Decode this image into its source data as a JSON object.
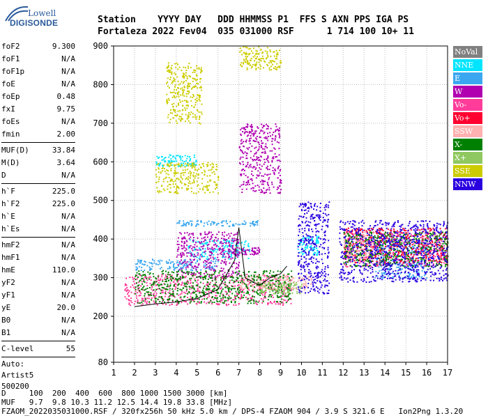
{
  "logo": {
    "brand_top": "Lowell",
    "brand_bottom": "DIGISONDE"
  },
  "header": {
    "line1": "Station    YYYY DAY   DDD HHMMSS P1  FFS S AXN PPS IGA PS",
    "line2": "Fortaleza 2022 Fev04  035 031000 RSF      1 714 100 10+ 11"
  },
  "params_group1": [
    {
      "k": "foF2",
      "v": "9.300"
    },
    {
      "k": "foF1",
      "v": "N/A"
    },
    {
      "k": "foF1p",
      "v": "N/A"
    },
    {
      "k": "foE",
      "v": "N/A"
    },
    {
      "k": "foEp",
      "v": "0.48"
    },
    {
      "k": "fxI",
      "v": "9.75"
    },
    {
      "k": "foEs",
      "v": "N/A"
    },
    {
      "k": "fmin",
      "v": "2.00"
    }
  ],
  "params_group2": [
    {
      "k": "MUF(D)",
      "v": "33.84"
    },
    {
      "k": "M(D)",
      "v": "3.64"
    },
    {
      "k": "D",
      "v": "N/A"
    }
  ],
  "params_group3": [
    {
      "k": "h`F",
      "v": "225.0"
    },
    {
      "k": "h`F2",
      "v": "225.0"
    },
    {
      "k": "h`E",
      "v": "N/A"
    },
    {
      "k": "h`Es",
      "v": "N/A"
    }
  ],
  "params_group4": [
    {
      "k": "hmF2",
      "v": "N/A"
    },
    {
      "k": "hmF1",
      "v": "N/A"
    },
    {
      "k": "hmE",
      "v": "110.0"
    },
    {
      "k": "yF2",
      "v": "N/A"
    },
    {
      "k": "yF1",
      "v": "N/A"
    },
    {
      "k": "yE",
      "v": "20.0"
    },
    {
      "k": "B0",
      "v": "N/A"
    },
    {
      "k": "B1",
      "v": "N/A"
    }
  ],
  "params_group5": [
    {
      "k": "C-level",
      "v": "55"
    }
  ],
  "auto": {
    "line1": "Auto:",
    "line2": "Artist5",
    "line3": "500200"
  },
  "legend": [
    {
      "label": "NoVal",
      "color": "#808080"
    },
    {
      "label": "NNE",
      "color": "#00e5ff"
    },
    {
      "label": "E",
      "color": "#3ba7f0"
    },
    {
      "label": "W",
      "color": "#b000b0"
    },
    {
      "label": "Vo-",
      "color": "#ff3c9a"
    },
    {
      "label": "Vo+",
      "color": "#ff0030"
    },
    {
      "label": "SSW",
      "color": "#ffb0b0"
    },
    {
      "label": "X-",
      "color": "#008000"
    },
    {
      "label": "X+",
      "color": "#8fc860"
    },
    {
      "label": "SSE",
      "color": "#cccc00"
    },
    {
      "label": "NNW",
      "color": "#2a00e0"
    }
  ],
  "footer": {
    "line1": "D     100  200  400  600  800 1000 1500 3000 [km]",
    "line2": "MUF   9.7  9.8 10.3 11.2 12.5 14.4 19.8 33.8 [MHz]",
    "line3": "FZAOM_2022035031000.RSF / 320fx256h 50 kHz 5.0 km / DPS-4 FZAOM 904 / 3.9 S 321.6 E   Ion2Png 1.3.20"
  },
  "chart_data": {
    "type": "scatter",
    "title": "",
    "xlabel": "",
    "ylabel": "",
    "xlim": [
      1,
      17
    ],
    "ylim": [
      80,
      900
    ],
    "x_ticks": [
      1,
      2,
      3,
      4,
      5,
      6,
      7,
      8,
      9,
      10,
      11,
      12,
      13,
      14,
      15,
      16,
      17
    ],
    "y_ticks": [
      80,
      200,
      300,
      400,
      500,
      600,
      700,
      800,
      900
    ],
    "y_scale": "nonlinear (80 at bottom, 200-900 linear)",
    "grid": true,
    "legend_position": "right",
    "series": [
      {
        "name": "NNE",
        "clusters": [
          {
            "x": [
              4.5,
              7.5
            ],
            "y": [
              350,
              400
            ]
          },
          {
            "x": [
              3,
              5
            ],
            "y": [
              590,
              620
            ]
          },
          {
            "x": [
              9.8,
              10.8
            ],
            "y": [
              360,
              410
            ]
          }
        ]
      },
      {
        "name": "E",
        "clusters": [
          {
            "x": [
              2,
              6
            ],
            "y": [
              320,
              350
            ]
          },
          {
            "x": [
              4,
              8
            ],
            "y": [
              435,
              450
            ]
          },
          {
            "x": [
              13.5,
              16
            ],
            "y": [
              300,
              400
            ]
          }
        ]
      },
      {
        "name": "W",
        "clusters": [
          {
            "x": [
              4,
              7
            ],
            "y": [
              300,
              420
            ]
          },
          {
            "x": [
              6,
              8
            ],
            "y": [
              360,
              380
            ]
          },
          {
            "x": [
              7,
              9
            ],
            "y": [
              520,
              700
            ]
          }
        ]
      },
      {
        "name": "Vo-",
        "clusters": [
          {
            "x": [
              1.5,
              9.5
            ],
            "y": [
              230,
              310
            ]
          },
          {
            "x": [
              12,
              17
            ],
            "y": [
              330,
              420
            ]
          }
        ]
      },
      {
        "name": "Vo+",
        "clusters": [
          {
            "x": [
              12,
              17
            ],
            "y": [
              340,
              430
            ]
          }
        ]
      },
      {
        "name": "SSW",
        "clusters": [
          {
            "x": [
              7,
              10.5
            ],
            "y": [
              270,
              310
            ]
          },
          {
            "x": [
              12,
              13.5
            ],
            "y": [
              350,
              420
            ]
          }
        ]
      },
      {
        "name": "X-",
        "clusters": [
          {
            "x": [
              2,
              9.5
            ],
            "y": [
              235,
              320
            ]
          },
          {
            "x": [
              12,
              17
            ],
            "y": [
              330,
              420
            ]
          }
        ]
      },
      {
        "name": "X+",
        "clusters": [
          {
            "x": [
              8,
              10
            ],
            "y": [
              260,
              290
            ]
          }
        ]
      },
      {
        "name": "SSE",
        "clusters": [
          {
            "x": [
              3.5,
              5.2
            ],
            "y": [
              700,
              860
            ]
          },
          {
            "x": [
              7,
              9
            ],
            "y": [
              840,
              900
            ]
          },
          {
            "x": [
              3,
              6
            ],
            "y": [
              520,
              600
            ]
          }
        ]
      },
      {
        "name": "NNW",
        "clusters": [
          {
            "x": [
              9.8,
              11.3
            ],
            "y": [
              260,
              500
            ]
          },
          {
            "x": [
              11.8,
              17
            ],
            "y": [
              290,
              450
            ]
          }
        ]
      }
    ],
    "traces": [
      {
        "name": "O-trace",
        "x": [
          2.0,
          3.0,
          4.0,
          5.0,
          6.0,
          6.8,
          7.0,
          7.3,
          8.0,
          8.5,
          9.0,
          9.3
        ],
        "y": [
          225,
          232,
          237,
          246,
          270,
          345,
          430,
          300,
          280,
          300,
          310,
          330
        ]
      }
    ]
  }
}
